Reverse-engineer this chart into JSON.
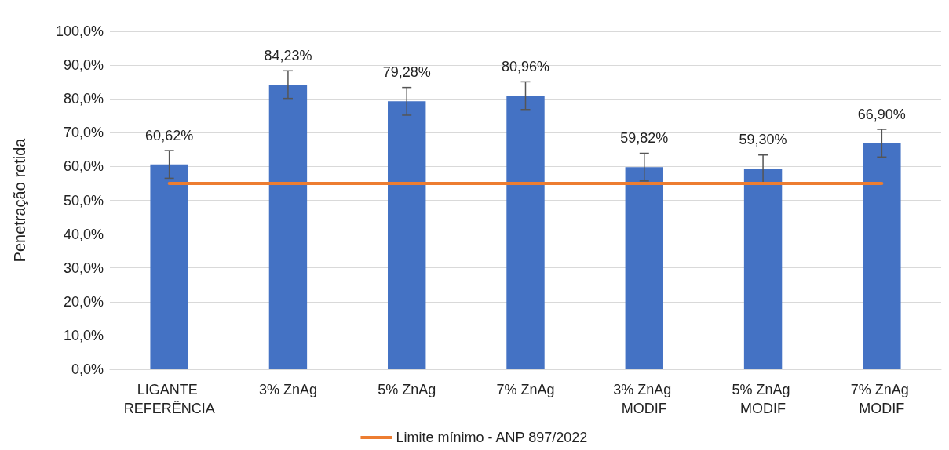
{
  "chart_data": {
    "type": "bar",
    "ylabel": "Penetração retida",
    "categories": [
      "LIGANTE REFERÊNCIA",
      "3% ZnAg",
      "5% ZnAg",
      "7% ZnAg",
      "3% ZnAg MODIF",
      "5% ZnAg MODIF",
      "7% ZnAg MODIF"
    ],
    "series": [
      {
        "color": "#4472c4",
        "values": [
          60.62,
          84.23,
          79.28,
          80.96,
          59.82,
          59.3,
          66.9
        ],
        "errors": [
          4.1,
          4.1,
          4.1,
          4.1,
          4.1,
          4.1,
          4.1
        ],
        "value_labels": [
          "60,62%",
          "84,23%",
          "79,28%",
          "80,96%",
          "59,82%",
          "59,30%",
          "66,90%"
        ]
      },
      {
        "type": "line",
        "name": "Limite mínimo - ANP 897/2022",
        "color": "#ed7d31",
        "values": [
          55,
          55,
          55,
          55,
          55,
          55,
          55
        ]
      }
    ],
    "ylim": [
      0,
      100
    ],
    "yticks": [
      {
        "value": 0,
        "label": "0,0%"
      },
      {
        "value": 10,
        "label": "10,0%"
      },
      {
        "value": 20,
        "label": "20,0%"
      },
      {
        "value": 30,
        "label": "30,0%"
      },
      {
        "value": 40,
        "label": "40,0%"
      },
      {
        "value": 50,
        "label": "50,0%"
      },
      {
        "value": 60,
        "label": "60,0%"
      },
      {
        "value": 70,
        "label": "70,0%"
      },
      {
        "value": 80,
        "label": "80,0%"
      },
      {
        "value": 90,
        "label": "90,0%"
      },
      {
        "value": 100,
        "label": "100,0%"
      }
    ],
    "grid": "y",
    "legend": "bottom",
    "marker": "none",
    "line_style": "solid"
  }
}
